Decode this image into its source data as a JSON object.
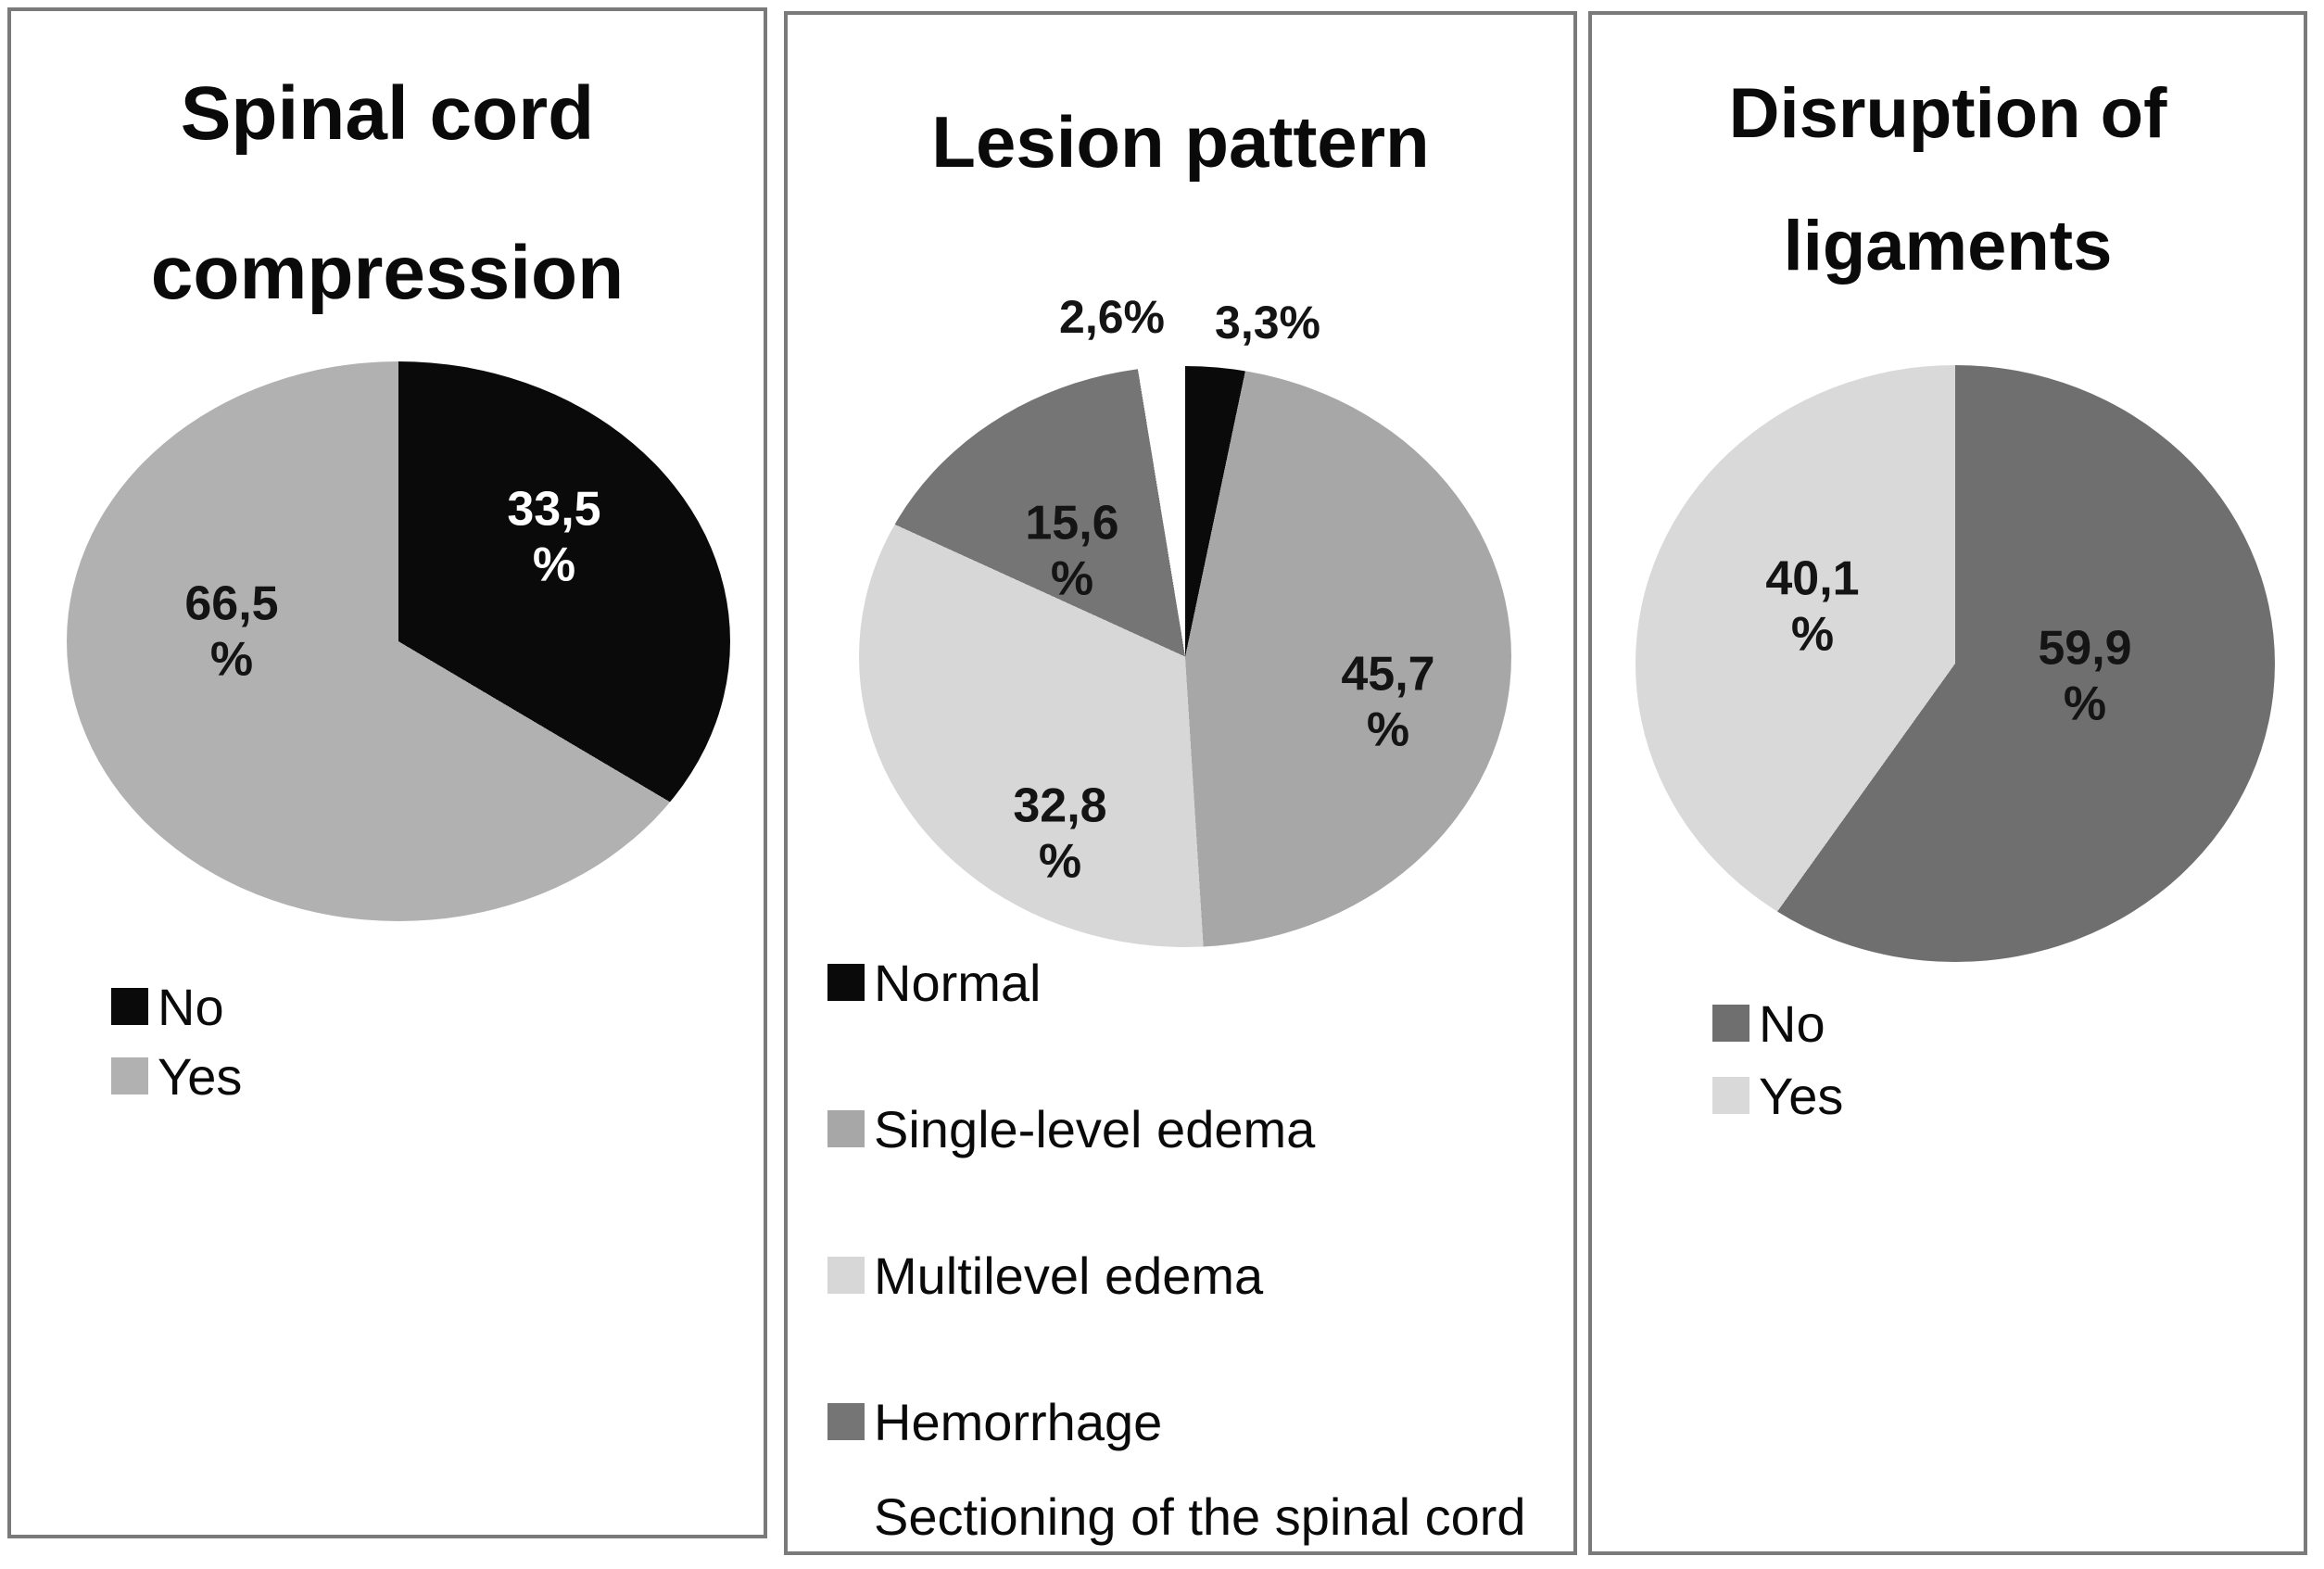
{
  "figure": {
    "background": "#ffffff",
    "panel_border_color": "#7a7a7a",
    "label_text_color": "#141414",
    "inverse_label_text_color": "#ffffff"
  },
  "chart_data": [
    {
      "type": "pie",
      "title": "Spinal cord compression",
      "title_lines": [
        "Spinal cord",
        "compression"
      ],
      "start_angle_deg": 0,
      "direction": "clockwise",
      "legend_position": "bottom-left",
      "slices": [
        {
          "label": "No",
          "value": 33.5,
          "display": "33,5\n%",
          "color": "#0a0a0a",
          "label_color": "#ffffff"
        },
        {
          "label": "Yes",
          "value": 66.5,
          "display": "66,5\n%",
          "color": "#b1b1b1",
          "label_color": "#141414"
        }
      ],
      "legend": [
        {
          "label": "No",
          "color": "#0a0a0a"
        },
        {
          "label": "Yes",
          "color": "#b1b1b1"
        }
      ]
    },
    {
      "type": "pie",
      "title": "Lesion pattern",
      "title_lines": [
        "Lesion pattern"
      ],
      "start_angle_deg": 0,
      "direction": "clockwise",
      "legend_position": "bottom-left",
      "slices": [
        {
          "label": "Normal",
          "value": 3.3,
          "display": "3,3%",
          "color": "#0a0a0a",
          "label_color": "#141414"
        },
        {
          "label": "Single-level edema",
          "value": 45.7,
          "display": "45,7\n%",
          "color": "#a7a7a7",
          "label_color": "#141414"
        },
        {
          "label": "Multilevel edema",
          "value": 32.8,
          "display": "32,8\n%",
          "color": "#d7d7d7",
          "label_color": "#141414"
        },
        {
          "label": "Hemorrhage",
          "value": 15.6,
          "display": "15,6\n%",
          "color": "#757575",
          "label_color": "#141414"
        },
        {
          "label": "Sectioning of the spinal cord",
          "value": 2.6,
          "display": "2,6%",
          "color": "#ffffff",
          "label_color": "#141414"
        }
      ],
      "legend": [
        {
          "label": "Normal",
          "color": "#0a0a0a"
        },
        {
          "label": "Single-level edema",
          "color": "#a7a7a7"
        },
        {
          "label": "Multilevel edema",
          "color": "#d7d7d7"
        },
        {
          "label": "Hemorrhage",
          "color": "#757575"
        },
        {
          "label": "Sectioning of the spinal cord",
          "color": "#ffffff"
        }
      ]
    },
    {
      "type": "pie",
      "title": "Disruption of ligaments",
      "title_lines": [
        "Disruption of",
        "ligaments"
      ],
      "start_angle_deg": 0,
      "direction": "clockwise",
      "legend_position": "bottom-left",
      "slices": [
        {
          "label": "No",
          "value": 59.9,
          "display": "59,9\n%",
          "color": "#6f6f6f",
          "label_color": "#141414"
        },
        {
          "label": "Yes",
          "value": 40.1,
          "display": "40,1\n%",
          "color": "#d9d9d9",
          "label_color": "#141414"
        }
      ],
      "legend": [
        {
          "label": "No",
          "color": "#6f6f6f"
        },
        {
          "label": "Yes",
          "color": "#d9d9d9"
        }
      ]
    }
  ]
}
